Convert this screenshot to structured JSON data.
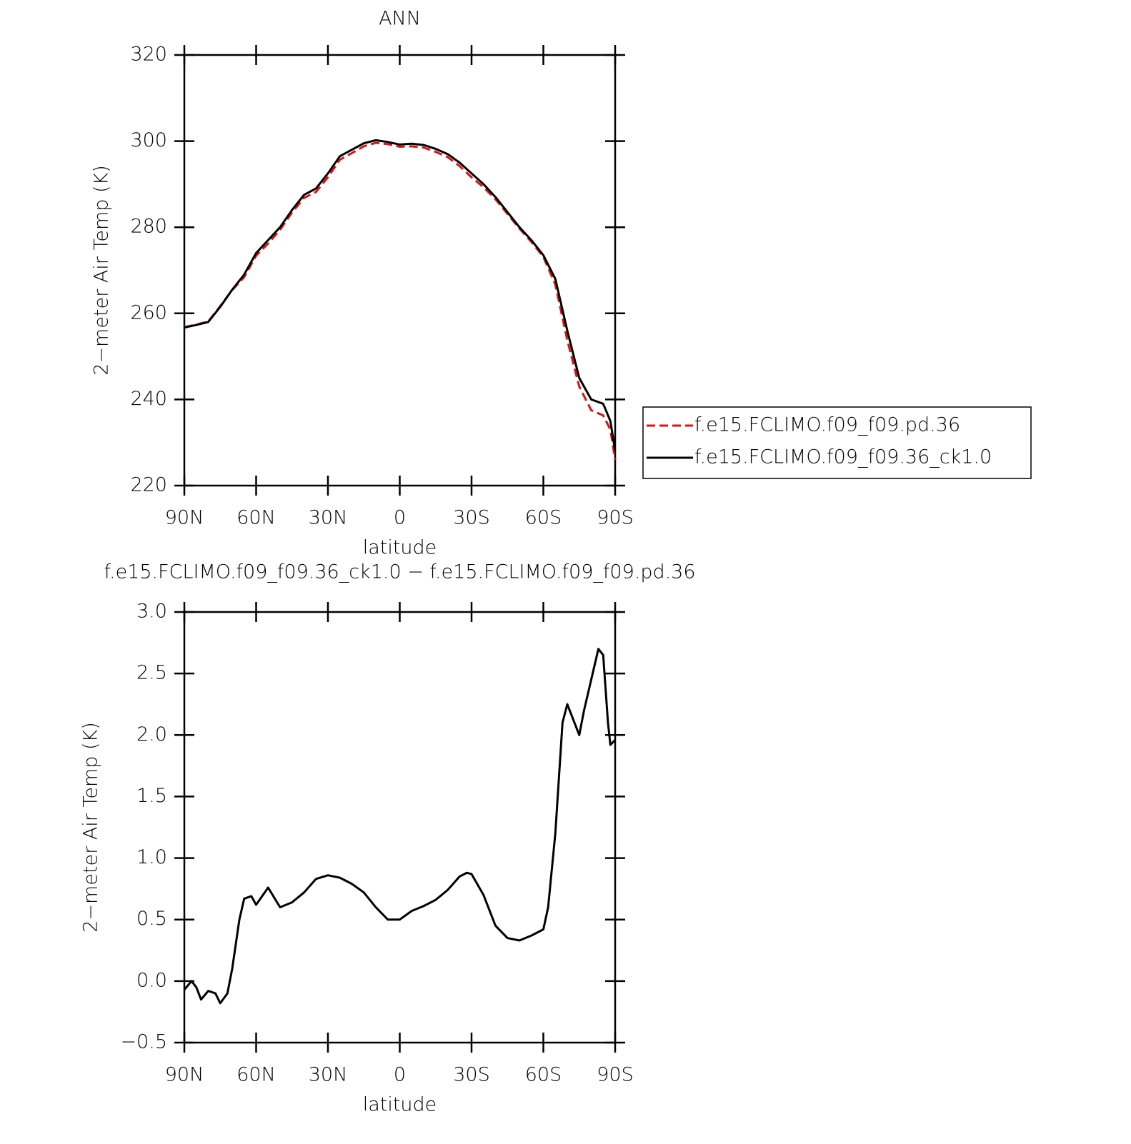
{
  "chart_data": [
    {
      "type": "line",
      "title": "ANN",
      "xlabel": "latitude",
      "ylabel": "2−meter Air Temp (K)",
      "x": [
        90,
        85,
        80,
        75,
        70,
        65,
        60,
        55,
        50,
        45,
        40,
        35,
        30,
        25,
        20,
        15,
        10,
        5,
        0,
        -5,
        -10,
        -15,
        -20,
        -25,
        -30,
        -35,
        -40,
        -45,
        -50,
        -55,
        -60,
        -65,
        -70,
        -75,
        -80,
        -85,
        -88,
        -90
      ],
      "series": [
        {
          "name": "f.e15.FCLIMO.f09_f09.pd.36",
          "color": "#e01010",
          "linestyle": "dashed",
          "values": [
            256.8,
            257.4,
            258.1,
            261.7,
            265.4,
            268.4,
            273.4,
            276.2,
            279.4,
            283.4,
            286.8,
            288.2,
            291.6,
            295.7,
            297.2,
            298.8,
            299.6,
            299.3,
            298.7,
            298.8,
            298.5,
            297.5,
            296.3,
            294.2,
            291.6,
            289.3,
            286.5,
            283.1,
            279.7,
            276.6,
            273.1,
            266.7,
            253.8,
            243,
            237.5,
            236.3,
            233,
            226
          ]
        },
        {
          "name": "f.e15.FCLIMO.f09_f09.36_ck1.0",
          "color": "#000000",
          "linestyle": "solid",
          "values": [
            256.7,
            257.3,
            258,
            261.5,
            265.5,
            269,
            274,
            277,
            280,
            284,
            287.5,
            289,
            292.5,
            296.5,
            298,
            299.5,
            300.2,
            299.8,
            299.2,
            299.4,
            299.1,
            298.2,
            297,
            295,
            292.5,
            290,
            287,
            283.5,
            280,
            277,
            273.5,
            268,
            256,
            245,
            240,
            239,
            235,
            228
          ]
        }
      ],
      "xlim": [
        90,
        -90
      ],
      "xticks": [
        {
          "value": 90,
          "label": "90N"
        },
        {
          "value": 60,
          "label": "60N"
        },
        {
          "value": 30,
          "label": "30N"
        },
        0,
        {
          "value": -30,
          "label": "30S"
        },
        {
          "value": -60,
          "label": "60S"
        },
        {
          "value": -90,
          "label": "90S"
        }
      ],
      "ylim": [
        220,
        320
      ],
      "yticks": [
        220,
        240,
        260,
        280,
        300,
        320
      ],
      "legend": "outside-right"
    },
    {
      "type": "line",
      "title": "f.e15.FCLIMO.f09_f09.36_ck1.0 − f.e15.FCLIMO.f09_f09.pd.36",
      "xlabel": "latitude",
      "ylabel": "2−meter Air Temp (K)",
      "x": [
        90,
        87,
        85,
        83,
        80,
        77,
        75,
        72,
        70,
        67,
        65,
        62,
        60,
        55,
        50,
        45,
        40,
        35,
        30,
        25,
        20,
        15,
        10,
        5,
        0,
        -5,
        -10,
        -15,
        -20,
        -25,
        -28,
        -30,
        -35,
        -40,
        -45,
        -50,
        -55,
        -60,
        -62,
        -65,
        -68,
        -70,
        -73,
        -75,
        -77,
        -80,
        -83,
        -85,
        -87,
        -88,
        -90
      ],
      "series": [
        {
          "color": "#000000",
          "linestyle": "solid",
          "values": [
            -0.07,
            0.0,
            -0.05,
            -0.15,
            -0.08,
            -0.1,
            -0.18,
            -0.1,
            0.1,
            0.5,
            0.67,
            0.69,
            0.62,
            0.76,
            0.6,
            0.64,
            0.72,
            0.83,
            0.86,
            0.84,
            0.79,
            0.72,
            0.6,
            0.5,
            0.5,
            0.57,
            0.61,
            0.66,
            0.74,
            0.85,
            0.88,
            0.87,
            0.7,
            0.45,
            0.35,
            0.33,
            0.37,
            0.42,
            0.6,
            1.2,
            2.1,
            2.25,
            2.1,
            2.0,
            2.2,
            2.45,
            2.7,
            2.65,
            2.1,
            1.92,
            1.96
          ]
        }
      ],
      "xlim": [
        90,
        -90
      ],
      "xticks": [
        {
          "value": 90,
          "label": "90N"
        },
        {
          "value": 60,
          "label": "60N"
        },
        {
          "value": 30,
          "label": "30N"
        },
        0,
        {
          "value": -30,
          "label": "30S"
        },
        {
          "value": -60,
          "label": "60S"
        },
        {
          "value": -90,
          "label": "90S"
        }
      ],
      "ylim": [
        -0.5,
        3.0
      ],
      "yticks": [
        {
          "value": -0.5,
          "label": "−0.5"
        },
        {
          "value": 0,
          "label": "0.0"
        },
        0.5,
        {
          "value": 1,
          "label": "1.0"
        },
        1.5,
        {
          "value": 2,
          "label": "2.0"
        },
        2.5,
        {
          "value": 3,
          "label": "3.0"
        }
      ]
    }
  ]
}
